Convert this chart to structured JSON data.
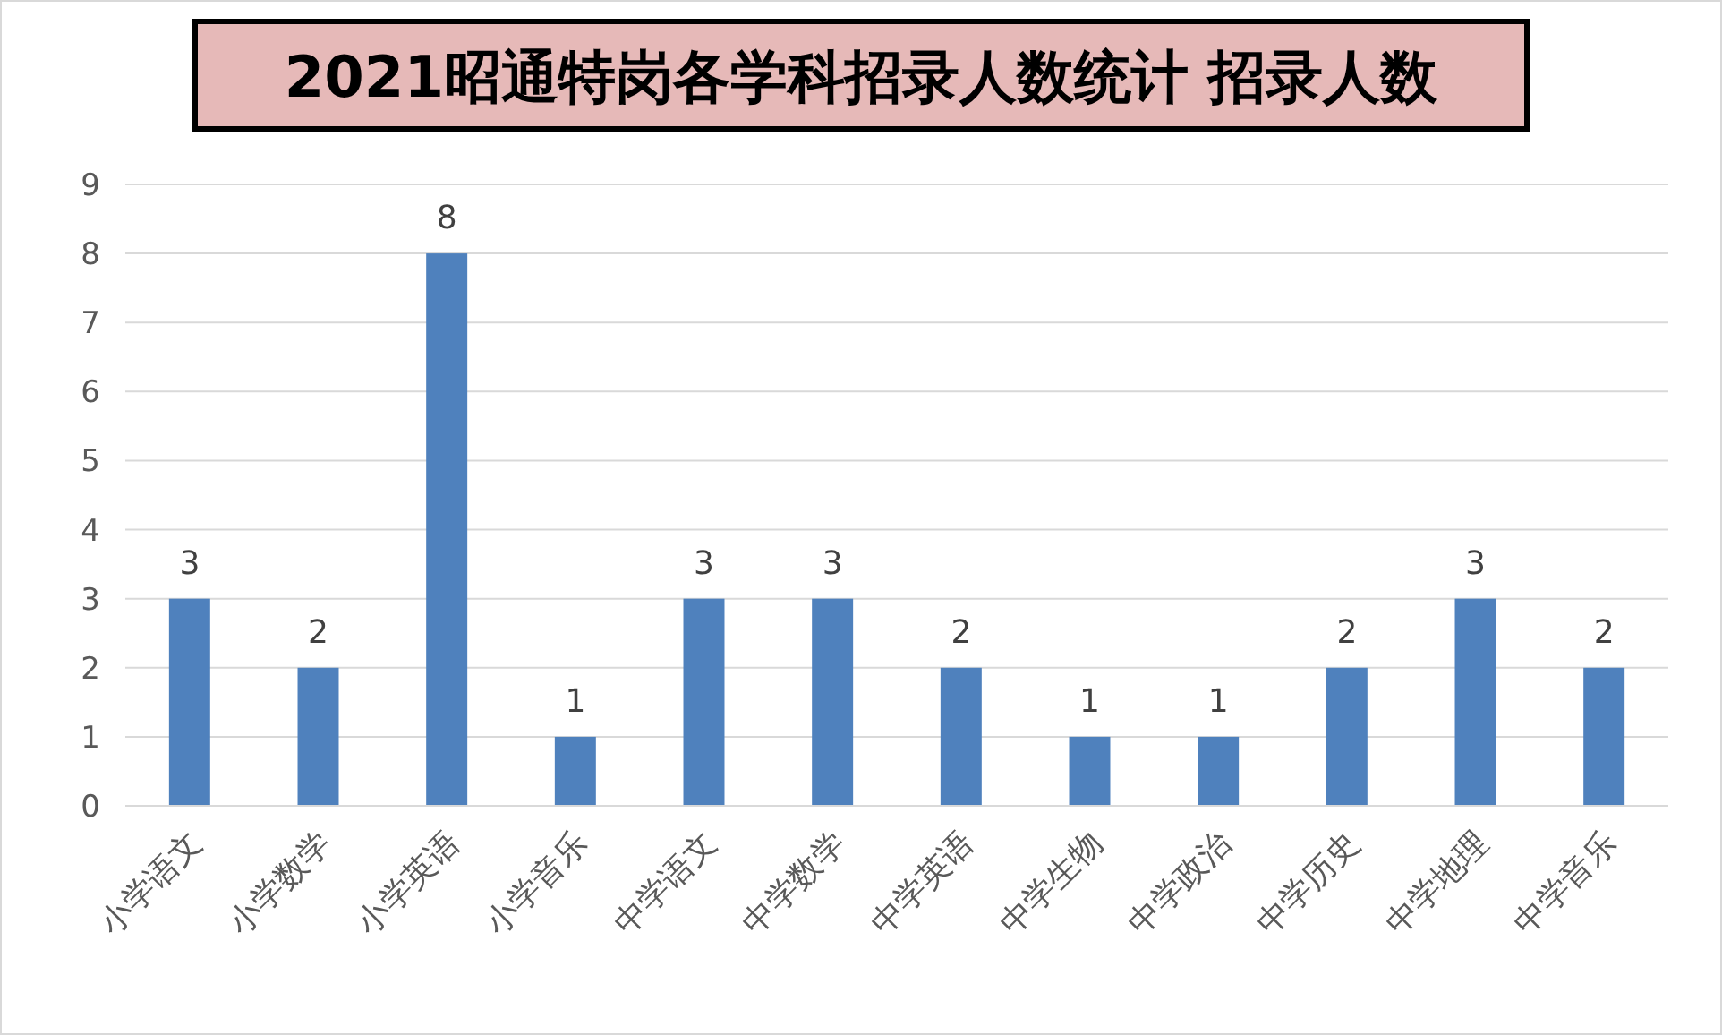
{
  "chart_data": {
    "type": "bar",
    "title": "2021昭通特岗各学科招录人数统计 招录人数",
    "categories": [
      "小学语文",
      "小学数学",
      "小学英语",
      "小学音乐",
      "中学语文",
      "中学数学",
      "中学英语",
      "中学生物",
      "中学政治",
      "中学历史",
      "中学地理",
      "中学音乐"
    ],
    "values": [
      3,
      2,
      8,
      1,
      3,
      3,
      2,
      1,
      1,
      2,
      3,
      2
    ],
    "color": "#4f81bd",
    "ylim": [
      0,
      9
    ],
    "yticks": [
      0,
      1,
      2,
      3,
      4,
      5,
      6,
      7,
      8,
      9
    ],
    "grid": "y",
    "data_labels": true
  }
}
